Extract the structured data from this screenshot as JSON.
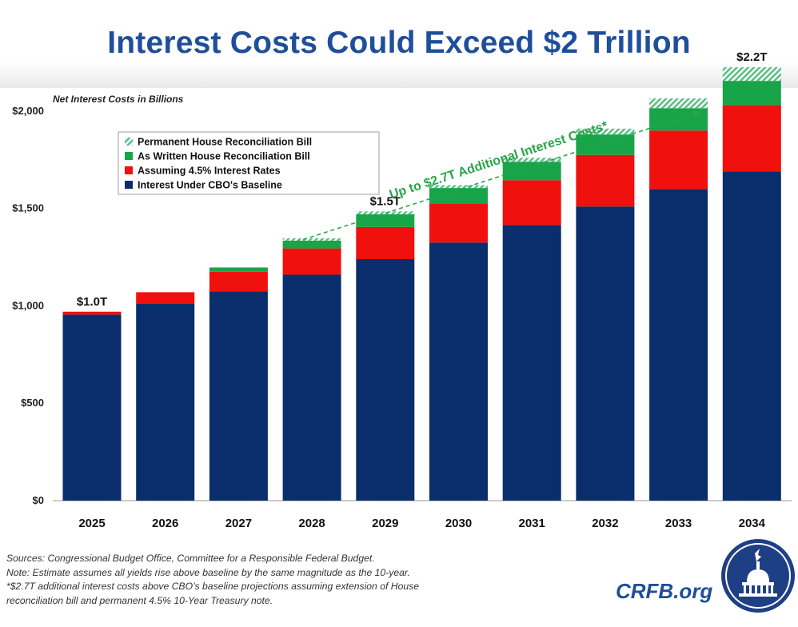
{
  "title": "Interest Costs Could Exceed $2 Trillion",
  "colors": {
    "baseline": "#0a2d6b",
    "rates": "#f0100d",
    "as_written": "#18a449",
    "permanent": "#5cbf86",
    "title": "#1f4e9b",
    "arrow": "#2aa54a"
  },
  "chart_data": {
    "type": "bar",
    "stacked": true,
    "ylabel": "Net Interest Costs in Billions",
    "ylim": [
      0,
      2250
    ],
    "yticks": [
      0,
      500,
      1000,
      1500,
      2000
    ],
    "ytick_labels": [
      "$0",
      "$500",
      "$1,000",
      "$1,500",
      "$2,000"
    ],
    "categories": [
      "2025",
      "2026",
      "2027",
      "2028",
      "2029",
      "2030",
      "2031",
      "2032",
      "2033",
      "2034"
    ],
    "series": [
      {
        "name": "Interest Under CBO's Baseline",
        "color": "#0a2d6b",
        "values": [
          955,
          1010,
          1075,
          1160,
          1240,
          1325,
          1415,
          1510,
          1600,
          1690
        ]
      },
      {
        "name": "Assuming 4.5% Interest Rates",
        "color": "#f0100d",
        "values": [
          15,
          60,
          100,
          135,
          165,
          200,
          230,
          265,
          300,
          340
        ]
      },
      {
        "name": "As Written House Reconciliation Bill",
        "color": "#18a449",
        "values": [
          0,
          0,
          22,
          40,
          65,
          80,
          95,
          105,
          115,
          125
        ]
      },
      {
        "name": "Permanent House Reconciliation Bill",
        "color": "#5cbf86",
        "pattern": "hatched",
        "values": [
          0,
          0,
          0,
          12,
          15,
          15,
          20,
          30,
          50,
          70
        ]
      }
    ],
    "legend": [
      "Permanent House Reconciliation Bill",
      "As Written House Reconciliation Bill",
      "Assuming 4.5% Interest Rates",
      "Interest Under CBO's Baseline"
    ],
    "legend_position": "top-left",
    "annotations": [
      {
        "category": "2025",
        "text": "$1.0T"
      },
      {
        "category": "2029",
        "text": "$1.5T"
      },
      {
        "category": "2034",
        "text": "$2.2T"
      }
    ],
    "arrow_text": "Up to $2.7T Additional Interest Costs*",
    "grid": false
  },
  "notes": [
    "Sources: Congressional Budget Office, Committee for a Responsible Federal Budget.",
    "Note: Estimate assumes all yields rise above baseline by the same magnitude as the 10-year.",
    "*$2.7T additional interest costs above CBO’s baseline projections assuming extension of House",
    "reconciliation bill and permanent 4.5% 10-Year Treasury note."
  ],
  "brand": "CRFB.org"
}
